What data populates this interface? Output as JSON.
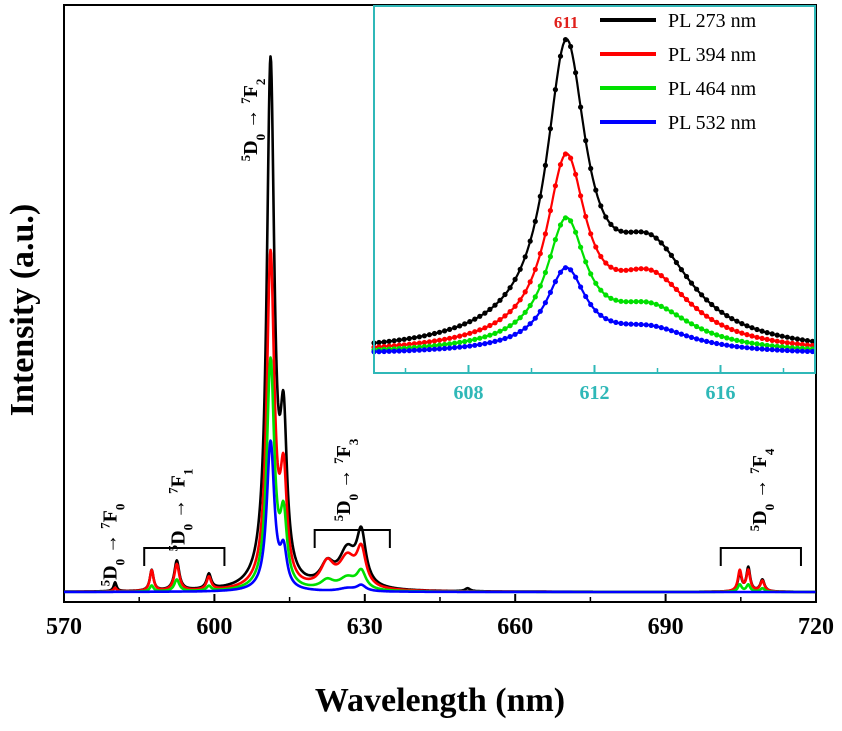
{
  "chart_data": [
    {
      "type": "line",
      "title": "",
      "xlabel": "Wavelength (nm)",
      "ylabel": "Intensity (a.u.)",
      "xlim": [
        570,
        720
      ],
      "ylim": [
        0,
        1.05
      ],
      "x_ticks": [
        "570",
        "600",
        "630",
        "660",
        "690",
        "720"
      ],
      "y_ticks": [],
      "legend": "inset top-right",
      "transition_labels": [
        {
          "pre": "5",
          "main": "D",
          "sub": "0",
          "arrow": " → ",
          "pre2": "7",
          "main2": "F",
          "sub2": "0",
          "x": 580.5
        },
        {
          "pre": "5",
          "main": "D",
          "sub": "0",
          "arrow": " → ",
          "pre2": "7",
          "main2": "F",
          "sub2": "1",
          "x": 594.0
        },
        {
          "pre": "5",
          "main": "D",
          "sub": "0",
          "arrow": " → ",
          "pre2": "7",
          "main2": "F",
          "sub2": "2",
          "x": 608.5
        },
        {
          "pre": "5",
          "main": "D",
          "sub": "0",
          "arrow": " → ",
          "pre2": "7",
          "main2": "F",
          "sub2": "3",
          "x": 627.0
        },
        {
          "pre": "5",
          "main": "D",
          "sub": "0",
          "arrow": " → ",
          "pre2": "7",
          "main2": "F",
          "sub2": "4",
          "x": 710.0
        }
      ],
      "brackets": [
        {
          "x0": 586,
          "x1": 602
        },
        {
          "x0": 620,
          "x1": 635
        },
        {
          "x0": 701,
          "x1": 717
        }
      ],
      "series": [
        {
          "name": "PL 273 nm",
          "color": "#000000",
          "peaks": [
            [
              580.2,
              0.015,
              0.35
            ],
            [
              587.5,
              0.035,
              0.45
            ],
            [
              592.5,
              0.05,
              0.6
            ],
            [
              598.9,
              0.025,
              0.55
            ],
            [
              611.2,
              0.88,
              0.9
            ],
            [
              613.8,
              0.24,
              0.8
            ],
            [
              622.5,
              0.035,
              1.6
            ],
            [
              626.5,
              0.06,
              2.0
            ],
            [
              629.3,
              0.085,
              1.1
            ],
            [
              650.5,
              0.005,
              0.6
            ],
            [
              704.8,
              0.03,
              0.45
            ],
            [
              706.5,
              0.04,
              0.45
            ],
            [
              709.3,
              0.02,
              0.5
            ]
          ]
        },
        {
          "name": "PL 394 nm",
          "color": "#ff0000",
          "peaks": [
            [
              580.2,
              0.006,
              0.35
            ],
            [
              587.5,
              0.035,
              0.45
            ],
            [
              592.5,
              0.045,
              0.6
            ],
            [
              598.9,
              0.022,
              0.55
            ],
            [
              611.2,
              0.56,
              0.9
            ],
            [
              613.8,
              0.17,
              0.8
            ],
            [
              622.5,
              0.04,
              1.6
            ],
            [
              626.5,
              0.05,
              2.0
            ],
            [
              629.3,
              0.06,
              1.1
            ],
            [
              704.8,
              0.035,
              0.45
            ],
            [
              706.5,
              0.035,
              0.45
            ],
            [
              709.3,
              0.018,
              0.5
            ]
          ]
        },
        {
          "name": "PL 464 nm",
          "color": "#00e000",
          "peaks": [
            [
              587.5,
              0.01,
              0.45
            ],
            [
              592.5,
              0.02,
              0.6
            ],
            [
              598.9,
              0.008,
              0.55
            ],
            [
              611.2,
              0.385,
              0.9
            ],
            [
              613.8,
              0.11,
              0.8
            ],
            [
              622.5,
              0.015,
              1.6
            ],
            [
              626.5,
              0.02,
              2.0
            ],
            [
              629.3,
              0.03,
              1.1
            ],
            [
              704.8,
              0.012,
              0.45
            ],
            [
              706.5,
              0.012,
              0.45
            ],
            [
              709.3,
              0.006,
              0.5
            ]
          ]
        },
        {
          "name": "PL 532 nm",
          "color": "#0000ff",
          "peaks": [
            [
              611.2,
              0.25,
              0.9
            ],
            [
              613.8,
              0.06,
              0.8
            ],
            [
              626.5,
              0.005,
              2.0
            ],
            [
              629.3,
              0.01,
              1.1
            ]
          ]
        }
      ]
    },
    {
      "type": "scatter",
      "title": "",
      "xlabel": "",
      "ylabel": "",
      "xlim": [
        605.0,
        619.0
      ],
      "ylim": [
        0,
        1.05
      ],
      "x_ticks": [
        "608",
        "612",
        "616"
      ],
      "peak_label": "611",
      "peak_label_color": "#e0201b",
      "series": [
        {
          "name": "PL 273 nm",
          "color": "#000000",
          "main": 1.0,
          "shoulder": 0.3
        },
        {
          "name": "PL 394 nm",
          "color": "#ff0000",
          "main": 0.63,
          "shoulder": 0.22
        },
        {
          "name": "PL 464 nm",
          "color": "#00e000",
          "main": 0.435,
          "shoulder": 0.13
        },
        {
          "name": "PL 532 nm",
          "color": "#0000ff",
          "main": 0.28,
          "shoulder": 0.07
        }
      ]
    }
  ]
}
